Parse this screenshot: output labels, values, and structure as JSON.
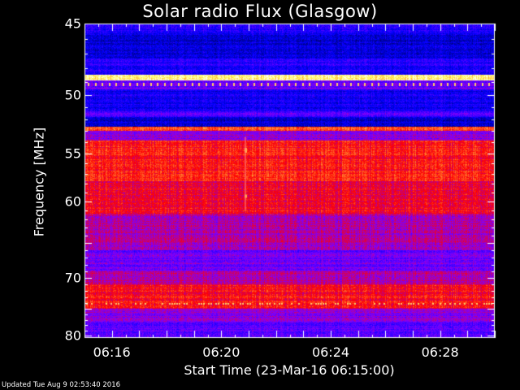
{
  "chart_data": {
    "type": "heatmap",
    "title": "Solar radio Flux (Glasgow)",
    "xlabel": "Start Time (23-Mar-16 06:15:00)",
    "ylabel": "Frequency [MHz]",
    "ylim": [
      45,
      80.5
    ],
    "y_ticks": [
      "45",
      "50",
      "55",
      "60",
      "70",
      "80"
    ],
    "y_tick_values": [
      45,
      50,
      55,
      60,
      70,
      80
    ],
    "y_scale": "reciprocal",
    "x_ticks": [
      "06:16",
      "06:20",
      "06:24",
      "06:28"
    ],
    "x_tick_minutes": [
      16,
      20,
      24,
      28
    ],
    "xlim_minutes": [
      15.0,
      30.0
    ],
    "colormap": [
      "#000060",
      "#0000ff",
      "#8000ff",
      "#ff0000",
      "#ffff60",
      "#ffffff"
    ],
    "bands": [
      {
        "from": 45.0,
        "to": 45.6,
        "level": 0.22
      },
      {
        "from": 45.6,
        "to": 47.3,
        "level": 0.14
      },
      {
        "from": 47.3,
        "to": 48.5,
        "level": 0.22
      },
      {
        "from": 48.5,
        "to": 48.9,
        "level": 0.92
      },
      {
        "from": 48.9,
        "to": 49.6,
        "level": 0.35
      },
      {
        "from": 49.6,
        "to": 51.3,
        "level": 0.18
      },
      {
        "from": 51.3,
        "to": 51.8,
        "level": 0.3
      },
      {
        "from": 51.8,
        "to": 52.6,
        "level": 0.12
      },
      {
        "from": 52.6,
        "to": 53.0,
        "level": 0.7
      },
      {
        "from": 53.0,
        "to": 53.8,
        "level": 0.4
      },
      {
        "from": 53.8,
        "to": 57.8,
        "level": 0.62
      },
      {
        "from": 57.8,
        "to": 61.5,
        "level": 0.58
      },
      {
        "from": 61.5,
        "to": 66.0,
        "level": 0.46
      },
      {
        "from": 66.0,
        "to": 69.0,
        "level": 0.36
      },
      {
        "from": 69.0,
        "to": 71.0,
        "level": 0.46
      },
      {
        "from": 71.0,
        "to": 75.0,
        "level": 0.6
      },
      {
        "from": 75.0,
        "to": 77.5,
        "level": 0.4
      },
      {
        "from": 77.5,
        "to": 80.5,
        "level": 0.33
      }
    ]
  },
  "footer": {
    "updated": "Updated Tue Aug  9 02:53:40 2016"
  }
}
